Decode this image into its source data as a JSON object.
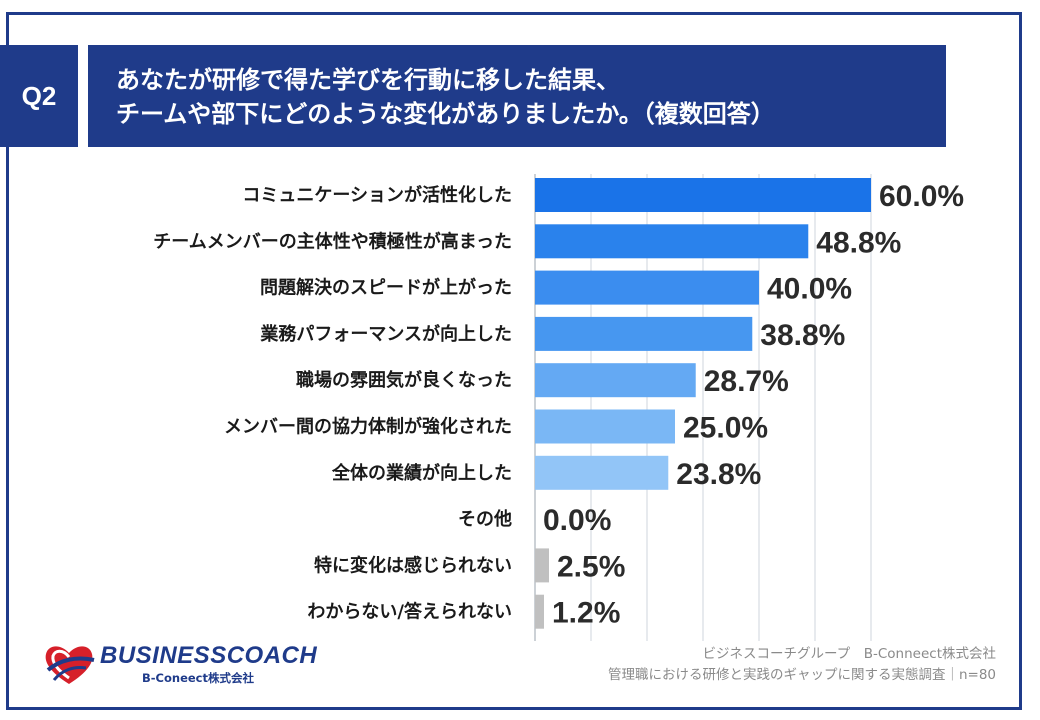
{
  "header": {
    "badge": "Q2",
    "title_line1": "あなたが研修で得た学びを行動に移した結果、",
    "title_line2": "チームや部下にどのような変化がありましたか。（複数回答）"
  },
  "chart_data": {
    "type": "bar",
    "orientation": "horizontal",
    "categories": [
      "コミュニケーションが活性化した",
      "チームメンバーの主体性や積極性が高まった",
      "問題解決のスピードが上がった",
      "業務パフォーマンスが向上した",
      "職場の雰囲気が良くなった",
      "メンバー間の協力体制が強化された",
      "全体の業績が向上した",
      "その他",
      "特に変化は感じられない",
      "わからない/答えられない"
    ],
    "values": [
      60.0,
      48.8,
      40.0,
      38.8,
      28.7,
      25.0,
      23.8,
      0.0,
      2.5,
      1.2
    ],
    "value_labels": [
      "60.0%",
      "48.8%",
      "40.0%",
      "38.8%",
      "28.7%",
      "25.0%",
      "23.8%",
      "0.0%",
      "2.5%",
      "1.2%"
    ],
    "bar_colors": [
      "#1a73e8",
      "#2a82ec",
      "#3b8def",
      "#4797f0",
      "#64a9f3",
      "#7ab7f5",
      "#92c5f7",
      "#c0c0c0",
      "#c0c0c0",
      "#c0c0c0"
    ],
    "xlim": [
      0,
      60
    ],
    "grid": true,
    "legend": "none"
  },
  "footer": {
    "source_line1": "ビジネスコーチグループ　B-Conneect株式会社",
    "source_line2": "管理職における研修と実践のギャップに関する実態調査｜n=80",
    "logo_text": "BUSINESSCOACH",
    "logo_sub": "B-Coneect株式会社"
  },
  "colors": {
    "header_bg": "#1f3b8a",
    "gridline": "#cfd4dc",
    "value_label": "#2b2b2b",
    "category_label": "#1a1a1a"
  }
}
